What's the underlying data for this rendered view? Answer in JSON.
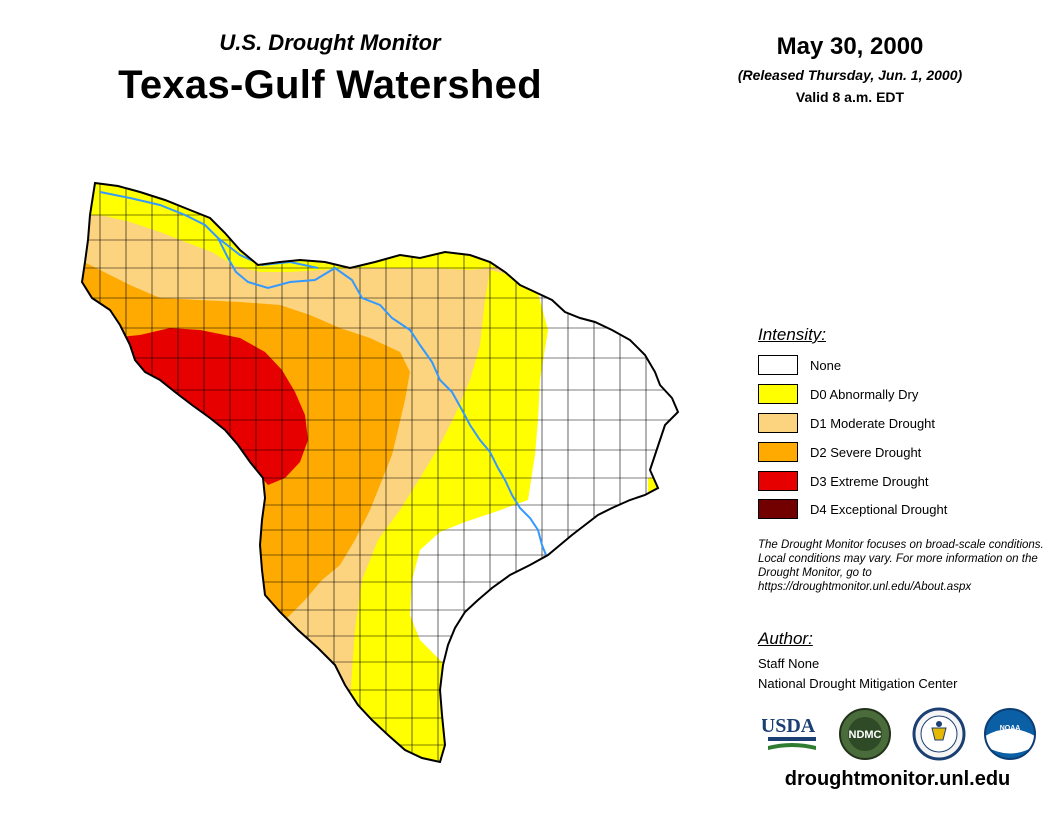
{
  "header": {
    "subtitle": "U.S. Drought Monitor",
    "title": "Texas-Gulf Watershed",
    "date": "May 30, 2000",
    "released": "(Released Thursday, Jun. 1, 2000)",
    "valid": "Valid 8 a.m. EDT"
  },
  "legend": {
    "title": "Intensity:",
    "items": [
      {
        "label": "None",
        "color": "#ffffff"
      },
      {
        "label": "D0 Abnormally Dry",
        "color": "#ffff00"
      },
      {
        "label": "D1 Moderate Drought",
        "color": "#fcd37f"
      },
      {
        "label": "D2 Severe Drought",
        "color": "#ffaa00"
      },
      {
        "label": "D3 Extreme Drought",
        "color": "#e60000"
      },
      {
        "label": "D4 Exceptional Drought",
        "color": "#730000"
      }
    ]
  },
  "note": "The Drought Monitor focuses on broad-scale conditions. Local conditions may vary. For more information on the Drought Monitor, go to https://droughtmonitor.unl.edu/About.aspx",
  "author": {
    "heading": "Author:",
    "name": "Staff None",
    "organization": "National Drought Mitigation Center"
  },
  "logos": [
    {
      "name": "usda-logo",
      "text": "USDA"
    },
    {
      "name": "ndmc-logo",
      "text": "NDMC"
    },
    {
      "name": "commerce-seal-logo",
      "text": ""
    },
    {
      "name": "noaa-logo",
      "text": "NOAA"
    }
  ],
  "website": "droughtmonitor.unl.edu",
  "map_colors": {
    "river": "#3399ff",
    "county_line": "#000000"
  }
}
